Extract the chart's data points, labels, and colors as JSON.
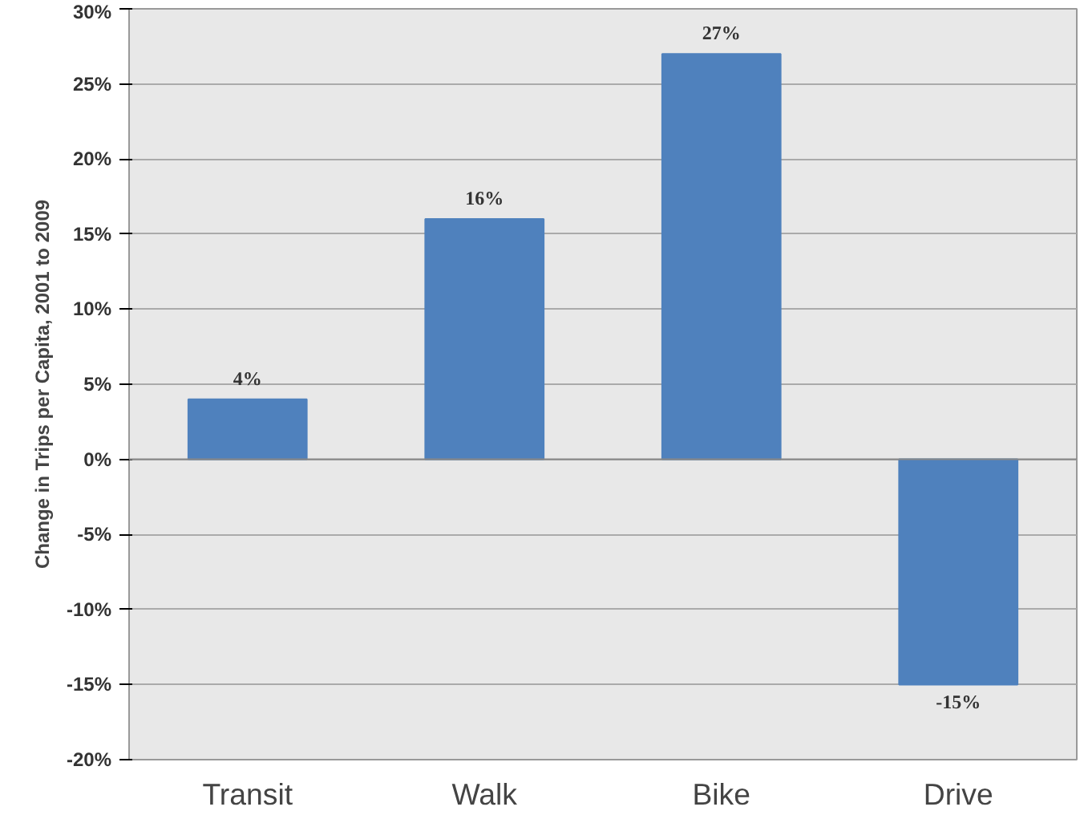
{
  "chart_data": {
    "type": "bar",
    "ylabel": "Change in Trips per Capita, 2001 to 2009",
    "categories": [
      "Transit",
      "Walk",
      "Bike",
      "Drive"
    ],
    "values": [
      4,
      16,
      27,
      -15
    ],
    "value_labels": [
      "4%",
      "16%",
      "27%",
      "-15%"
    ],
    "color": "#4f81bd",
    "ylim": [
      -20,
      30
    ],
    "yticks": [
      {
        "value": -20,
        "label": "-20%"
      },
      {
        "value": -15,
        "label": "-15%"
      },
      {
        "value": -10,
        "label": "-10%"
      },
      {
        "value": -5,
        "label": "-5%"
      },
      {
        "value": 0,
        "label": "0%"
      },
      {
        "value": 5,
        "label": "5%"
      },
      {
        "value": 10,
        "label": "10%"
      },
      {
        "value": 15,
        "label": "15%"
      },
      {
        "value": 20,
        "label": "20%"
      },
      {
        "value": 25,
        "label": "25%"
      },
      {
        "value": 30,
        "label": "30%"
      }
    ],
    "grid": "y"
  }
}
